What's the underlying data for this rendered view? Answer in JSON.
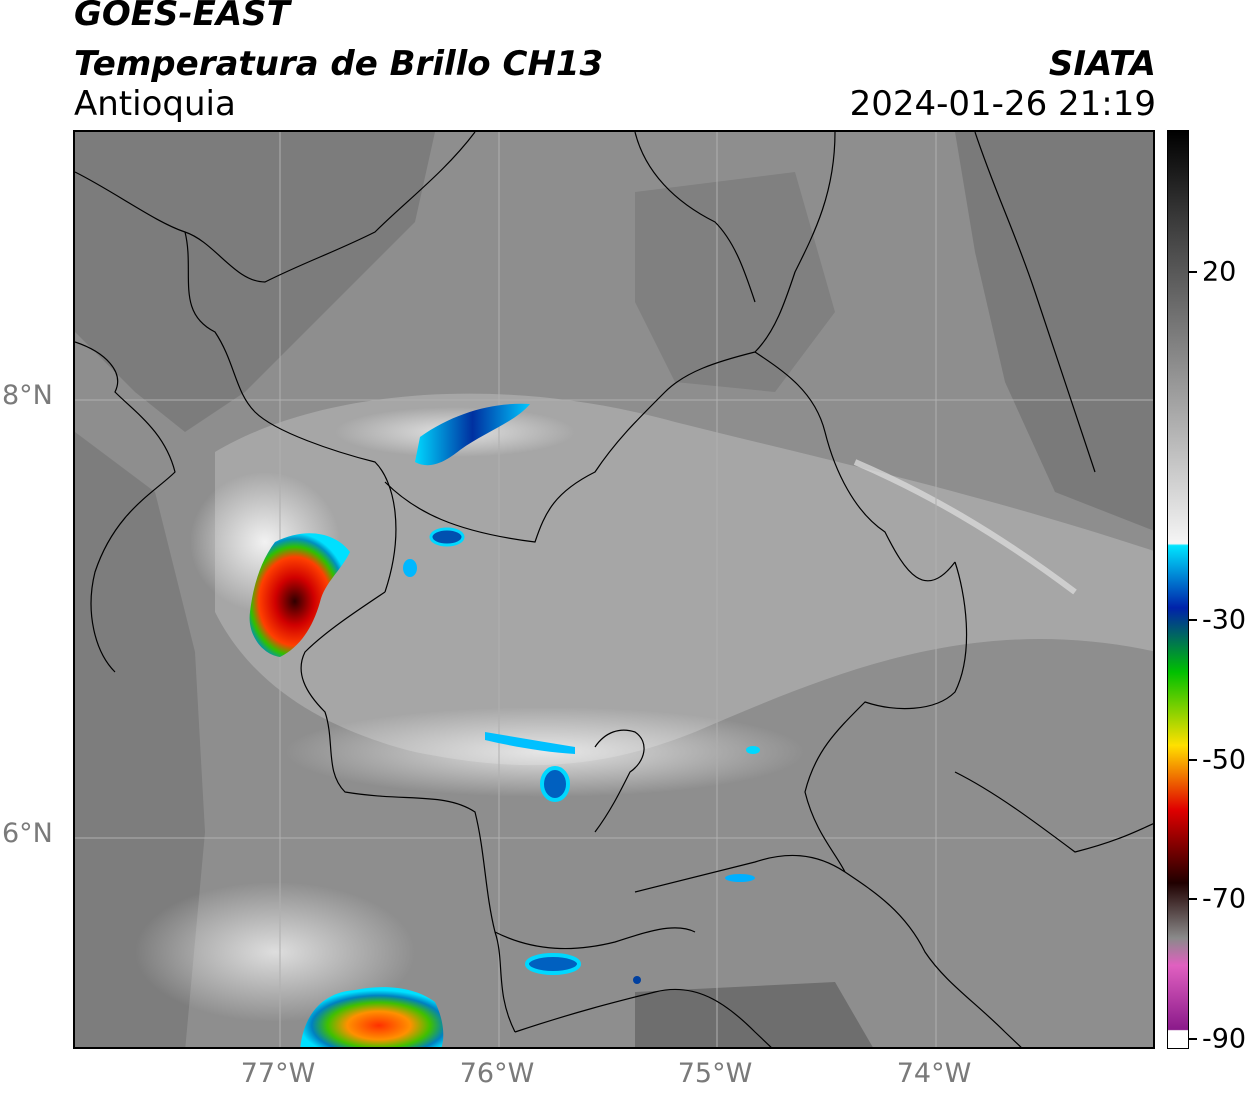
{
  "header": {
    "satellite": "GOES-EAST",
    "product": "Temperatura de Brillo CH13",
    "region": "Antioquia",
    "organization": "SIATA",
    "timestamp": "2024-01-26 21:19"
  },
  "map": {
    "lat_labels": [
      "8°N",
      "6°N"
    ],
    "lon_labels": [
      "77°W",
      "76°W",
      "75°W",
      "74°W"
    ],
    "background_color": "#8c8c8c"
  },
  "colorbar": {
    "labels": [
      "20",
      "-30",
      "-50",
      "-70",
      "-90"
    ],
    "colors": {
      "warm": "#3c3c3c",
      "mid": "#cfcfcf",
      "cyan": "#00e5ff",
      "blue": "#0022aa",
      "green": "#00c000",
      "yellow": "#ffe000",
      "red": "#e00000",
      "dark": "#200000",
      "pink": "#e060c0",
      "purple": "#8a1a8a"
    }
  }
}
